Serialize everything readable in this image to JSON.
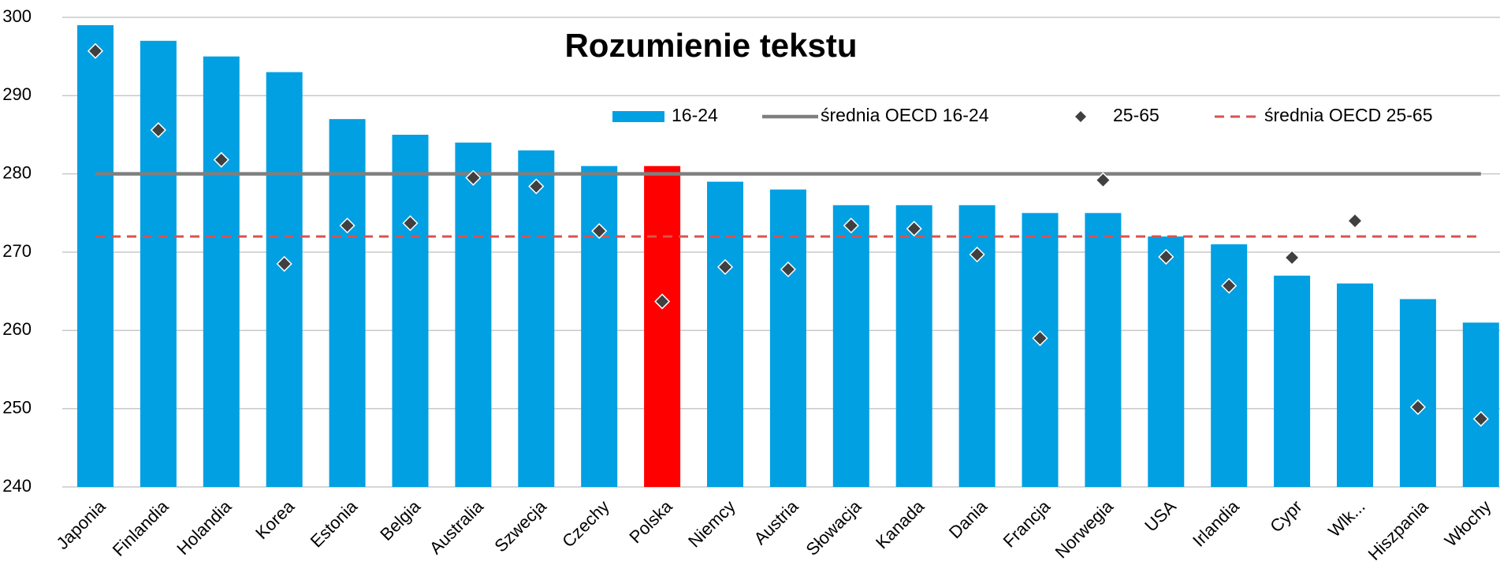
{
  "chart_data": {
    "type": "bar",
    "title": "Rozumienie tekstu",
    "categories": [
      "Japonia",
      "Finlandia",
      "Holandia",
      "Korea",
      "Estonia",
      "Belgia",
      "Australia",
      "Szwecja",
      "Czechy",
      "Polska",
      "Niemcy",
      "Austria",
      "Słowacja",
      "Kanada",
      "Dania",
      "Francja",
      "Norwegia",
      "USA",
      "Irlandia",
      "Cypr",
      "Wlk...",
      "Hiszpania",
      "Włochy"
    ],
    "series": [
      {
        "name": "16-24",
        "color": "#00a0e3",
        "bar_colors": [
          "#00a0e3",
          "#00a0e3",
          "#00a0e3",
          "#00a0e3",
          "#00a0e3",
          "#00a0e3",
          "#00a0e3",
          "#00a0e3",
          "#00a0e3",
          "#ff0000",
          "#00a0e3",
          "#00a0e3",
          "#00a0e3",
          "#00a0e3",
          "#00a0e3",
          "#00a0e3",
          "#00a0e3",
          "#00a0e3",
          "#00a0e3",
          "#00a0e3",
          "#00a0e3",
          "#00a0e3",
          "#00a0e3"
        ],
        "values": [
          299,
          297,
          295,
          293,
          287,
          285,
          284,
          283,
          281,
          281,
          279,
          278,
          276,
          276,
          276,
          275,
          275,
          272,
          271,
          267,
          266,
          264,
          261
        ]
      },
      {
        "name": "średnia OECD 16-24",
        "color": "#7f7f7f",
        "reference": 280
      },
      {
        "name": "25-65",
        "color": "#404040",
        "values": [
          295.7,
          285.6,
          281.8,
          268.5,
          273.4,
          273.7,
          279.5,
          278.4,
          272.7,
          263.7,
          268.1,
          267.8,
          273.4,
          273,
          269.7,
          259,
          279.2,
          269.4,
          265.7,
          269.3,
          274,
          250.2,
          248.7
        ]
      },
      {
        "name": "średnia OECD 25-65",
        "color": "#d9534f",
        "reference": 272
      }
    ],
    "ylim": [
      240,
      300
    ],
    "yticks": [
      240,
      250,
      260,
      270,
      280,
      290,
      300
    ],
    "grid": true
  }
}
